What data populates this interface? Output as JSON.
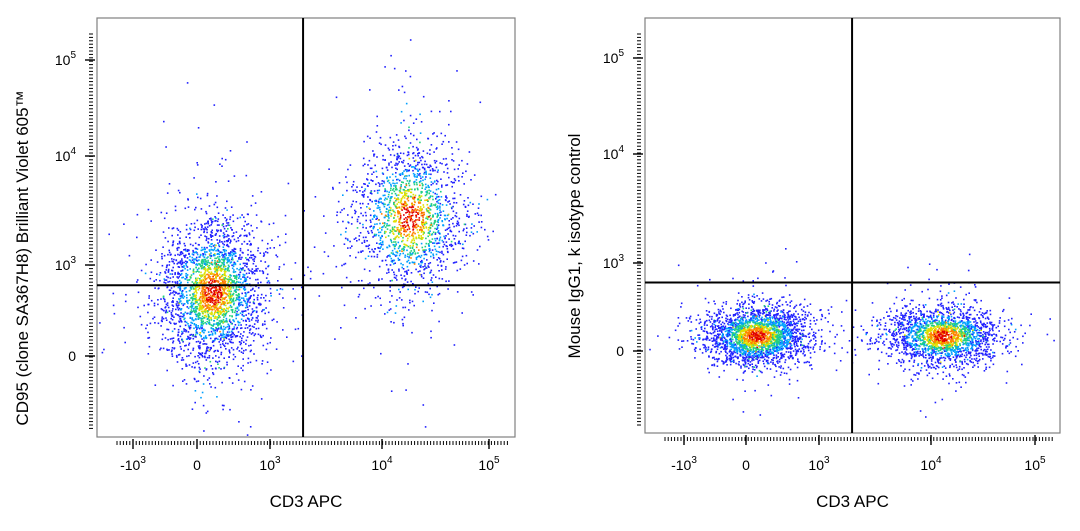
{
  "chart_data": [
    {
      "type": "scatter",
      "subtype": "flow-cytometry-density-dot-plot",
      "xlabel": "CD3 APC",
      "ylabel": "CD95 (clone SA367H8) Brilliant Violet 605™",
      "x_scale": "biexponential",
      "y_scale": "biexponential",
      "x_ticks": [
        {
          "label": "-10",
          "exp": "3",
          "value": -1000
        },
        {
          "label": "0",
          "exp": "",
          "value": 0
        },
        {
          "label": "10",
          "exp": "3",
          "value": 1000
        },
        {
          "label": "10",
          "exp": "4",
          "value": 10000
        },
        {
          "label": "10",
          "exp": "5",
          "value": 100000
        }
      ],
      "y_ticks": [
        {
          "label": "0",
          "exp": "",
          "value": 0
        },
        {
          "label": "10",
          "exp": "3",
          "value": 1000
        },
        {
          "label": "10",
          "exp": "4",
          "value": 10000
        },
        {
          "label": "10",
          "exp": "5",
          "value": 100000
        }
      ],
      "quadrant_gates": {
        "x": 2000,
        "y": 500
      },
      "populations": [
        {
          "x_center": 50,
          "y_center": 400,
          "events": 2600
        },
        {
          "x_center": 18000,
          "y_center": 2800,
          "events": 1700
        }
      ],
      "density_colors": [
        "#2020ff",
        "#00a0ff",
        "#20d080",
        "#e0e000",
        "#ff8000",
        "#e00000"
      ],
      "grid": false
    },
    {
      "type": "scatter",
      "subtype": "flow-cytometry-density-dot-plot",
      "xlabel": "CD3 APC",
      "ylabel": "Mouse IgG1, k isotype control",
      "x_scale": "biexponential",
      "y_scale": "biexponential",
      "x_ticks": [
        {
          "label": "-10",
          "exp": "3",
          "value": -1000
        },
        {
          "label": "0",
          "exp": "",
          "value": 0
        },
        {
          "label": "10",
          "exp": "3",
          "value": 1000
        },
        {
          "label": "10",
          "exp": "4",
          "value": 10000
        },
        {
          "label": "10",
          "exp": "5",
          "value": 100000
        }
      ],
      "y_ticks": [
        {
          "label": "0",
          "exp": "",
          "value": 0
        },
        {
          "label": "10",
          "exp": "3",
          "value": 1000
        },
        {
          "label": "10",
          "exp": "4",
          "value": 10000
        },
        {
          "label": "10",
          "exp": "5",
          "value": 100000
        }
      ],
      "quadrant_gates": {
        "x": 2000,
        "y": 500
      },
      "populations": [
        {
          "x_center": 30,
          "y_center": 40,
          "events": 2400
        },
        {
          "x_center": 13000,
          "y_center": 40,
          "events": 2000
        }
      ],
      "density_colors": [
        "#2020ff",
        "#00a0ff",
        "#20d080",
        "#e0e000",
        "#ff8000",
        "#e00000"
      ],
      "grid": false
    }
  ]
}
